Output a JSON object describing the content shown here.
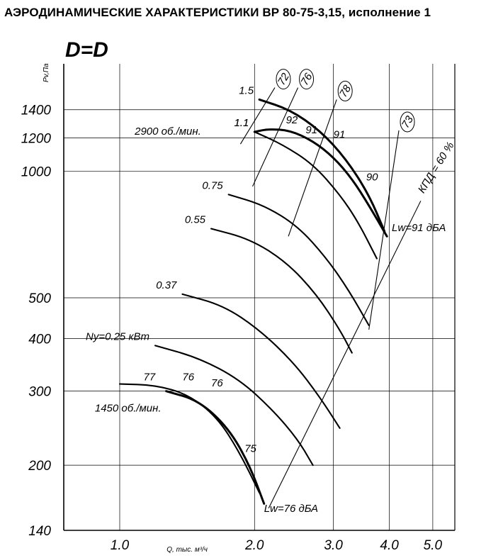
{
  "title": "АЭРОДИНАМИЧЕСКИЕ ХАРАКТЕРИСТИКИ ВР 80-75-3,15, исполнение 1",
  "chart_data": {
    "type": "line",
    "subtitle": "D=D",
    "ylabel": "Pv,Па",
    "xlabel": "Q, тыс. м³/ч",
    "x_scale": "log",
    "y_scale": "log",
    "xlim": [
      0.75,
      5.6
    ],
    "ylim": [
      140,
      1800
    ],
    "x_ticks": [
      {
        "value": 1.0,
        "label": "1.0"
      },
      {
        "value": 2.0,
        "label": "2.0"
      },
      {
        "value": 3.0,
        "label": "3.0"
      },
      {
        "value": 4.0,
        "label": "4.0"
      },
      {
        "value": 5.0,
        "label": "5.0"
      }
    ],
    "y_ticks": [
      {
        "value": 140,
        "label": "140"
      },
      {
        "value": 200,
        "label": "200"
      },
      {
        "value": 300,
        "label": "300"
      },
      {
        "value": 400,
        "label": "400"
      },
      {
        "value": 500,
        "label": "500"
      },
      {
        "value": 1000,
        "label": "1000"
      },
      {
        "value": 1200,
        "label": "1200"
      },
      {
        "value": 1400,
        "label": "1400"
      }
    ],
    "grid": true,
    "speed_labels": [
      {
        "text": "2900 об./мин.",
        "x": 1.08,
        "y": 1220
      },
      {
        "text": "1450 об./мин.",
        "x": 0.88,
        "y": 268
      }
    ],
    "series": [
      {
        "name": "1.5",
        "points": [
          [
            2.05,
            1480
          ],
          [
            2.4,
            1400
          ],
          [
            2.8,
            1250
          ],
          [
            3.2,
            1070
          ],
          [
            3.6,
            880
          ],
          [
            3.9,
            720
          ]
        ]
      },
      {
        "name": "1.1",
        "points": [
          [
            2.0,
            1240
          ],
          [
            2.15,
            1260
          ],
          [
            2.4,
            1250
          ],
          [
            2.7,
            1180
          ],
          [
            3.0,
            1080
          ],
          [
            3.3,
            960
          ],
          [
            3.6,
            830
          ],
          [
            3.95,
            700
          ]
        ]
      },
      {
        "name": "1.1",
        "points": [
          [
            2.0,
            1240
          ],
          [
            2.3,
            1160
          ],
          [
            2.7,
            1040
          ],
          [
            3.1,
            880
          ],
          [
            3.4,
            760
          ],
          [
            3.75,
            620
          ]
        ]
      },
      {
        "name": "0.75",
        "points": [
          [
            1.75,
            880
          ],
          [
            2.1,
            830
          ],
          [
            2.5,
            740
          ],
          [
            2.9,
            620
          ],
          [
            3.25,
            520
          ],
          [
            3.6,
            430
          ]
        ]
      },
      {
        "name": "0.55",
        "points": [
          [
            1.6,
            730
          ],
          [
            1.95,
            690
          ],
          [
            2.35,
            610
          ],
          [
            2.75,
            510
          ],
          [
            3.1,
            420
          ],
          [
            3.3,
            370
          ]
        ]
      },
      {
        "name": "0.37",
        "points": [
          [
            1.38,
            510
          ],
          [
            1.7,
            480
          ],
          [
            2.05,
            420
          ],
          [
            2.45,
            350
          ],
          [
            2.8,
            290
          ],
          [
            3.1,
            245
          ]
        ]
      },
      {
        "name": "Ny=0.25 кВт",
        "points": [
          [
            1.2,
            385
          ],
          [
            1.5,
            360
          ],
          [
            1.85,
            320
          ],
          [
            2.2,
            270
          ],
          [
            2.5,
            230
          ],
          [
            2.7,
            200
          ]
        ]
      },
      {
        "name": "",
        "points": [
          [
            1.0,
            312
          ],
          [
            1.2,
            310
          ],
          [
            1.42,
            295
          ],
          [
            1.65,
            260
          ],
          [
            1.85,
            215
          ],
          [
            2.05,
            172
          ]
        ]
      },
      {
        "name": "",
        "points": [
          [
            1.27,
            300
          ],
          [
            1.5,
            285
          ],
          [
            1.75,
            245
          ],
          [
            1.95,
            200
          ],
          [
            2.1,
            162
          ]
        ]
      }
    ],
    "efficiency_rays": [
      {
        "label": "72",
        "points": [
          [
            1.86,
            1160
          ],
          [
            2.22,
            1580
          ]
        ]
      },
      {
        "label": "76",
        "points": [
          [
            1.98,
            920
          ],
          [
            2.5,
            1580
          ]
        ]
      },
      {
        "label": "78",
        "points": [
          [
            2.38,
            700
          ],
          [
            3.05,
            1480
          ]
        ]
      },
      {
        "label": "73",
        "points": [
          [
            3.6,
            420
          ],
          [
            4.2,
            1250
          ]
        ]
      },
      {
        "label": "КПД = 60 %",
        "points": [
          [
            2.15,
            158
          ],
          [
            4.7,
            850
          ]
        ]
      }
    ],
    "annotations": [
      {
        "text": "92",
        "x": 2.35,
        "y": 1300
      },
      {
        "text": "91",
        "x": 2.6,
        "y": 1230
      },
      {
        "text": "91",
        "x": 3.0,
        "y": 1200
      },
      {
        "text": "90",
        "x": 3.55,
        "y": 950
      },
      {
        "text": "77",
        "x": 1.13,
        "y": 318
      },
      {
        "text": "76",
        "x": 1.38,
        "y": 318
      },
      {
        "text": "76",
        "x": 1.6,
        "y": 308
      },
      {
        "text": "75",
        "x": 1.9,
        "y": 215
      },
      {
        "text": "Lw=91 дБА",
        "x": 4.05,
        "y": 720
      },
      {
        "text": "Lw=76 дБА",
        "x": 2.1,
        "y": 155
      }
    ]
  }
}
